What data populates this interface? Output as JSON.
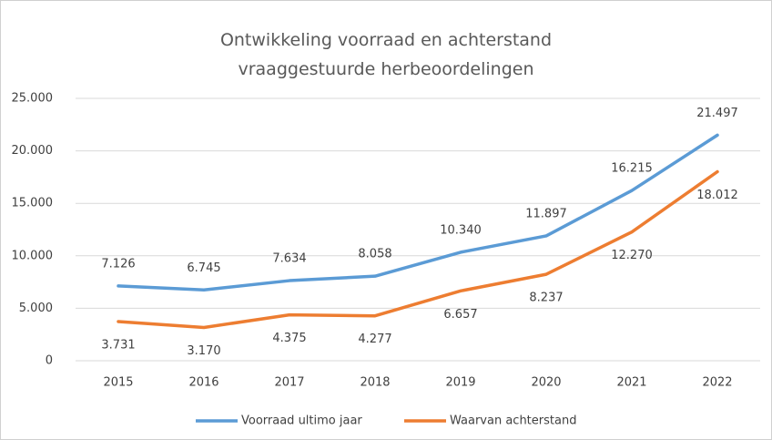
{
  "chart_data": {
    "type": "line",
    "title": "Ontwikkeling voorraad en achterstand vraaggestuurde herbeoordelingen",
    "categories": [
      "2015",
      "2016",
      "2017",
      "2018",
      "2019",
      "2020",
      "2021",
      "2022"
    ],
    "series": [
      {
        "name": "Voorraad ultimo jaar",
        "color": "#5b9bd5",
        "values": [
          7126,
          6745,
          7634,
          8058,
          10340,
          11897,
          16215,
          21497
        ],
        "value_labels": [
          "7.126",
          "6.745",
          "7.634",
          "8.058",
          "10.340",
          "11.897",
          "16.215",
          "21.497"
        ]
      },
      {
        "name": "Waarvan achterstand",
        "color": "#ed7d31",
        "values": [
          3731,
          3170,
          4375,
          4277,
          6657,
          8237,
          12270,
          18012
        ],
        "value_labels": [
          "3.731",
          "3.170",
          "4.375",
          "4.277",
          "6.657",
          "8.237",
          "12.270",
          "18.012"
        ]
      }
    ],
    "ylim": [
      0,
      25000
    ],
    "yticks": [
      0,
      {
        "value": 5000,
        "label": "5.000"
      },
      {
        "value": 10000,
        "label": "10.000"
      },
      {
        "value": 15000,
        "label": "15.000"
      },
      {
        "value": 20000,
        "label": "20.000"
      },
      {
        "value": 25000,
        "label": "25.000"
      }
    ],
    "grid": true,
    "legend": "bottom"
  }
}
